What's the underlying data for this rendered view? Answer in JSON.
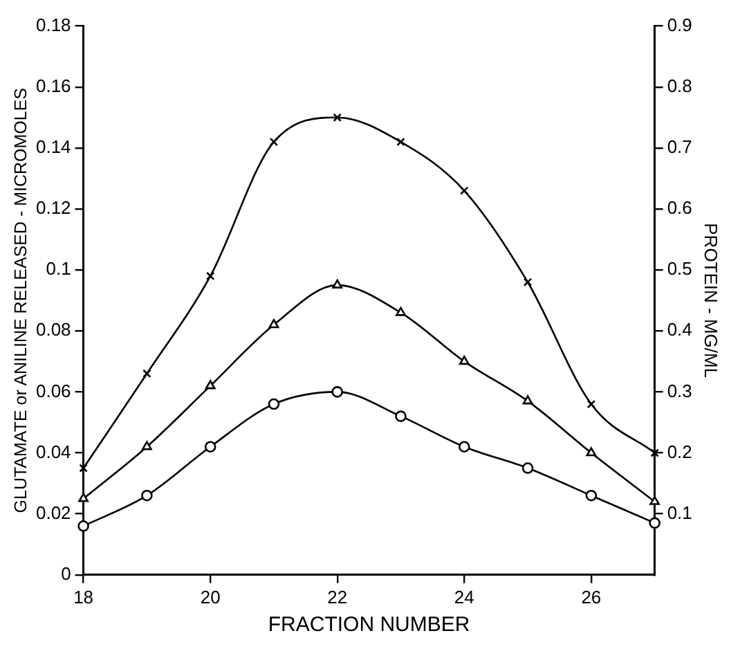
{
  "chart_data": {
    "type": "line",
    "xlabel": "FRACTION NUMBER",
    "ylabel": "GLUTAMATE or ANILINE RELEASED - MICROMOLES",
    "y2label": "PROTEIN - MG/ML",
    "x": [
      18,
      19,
      20,
      21,
      22,
      23,
      24,
      25,
      26,
      27
    ],
    "xlim": [
      18,
      27
    ],
    "xticks": [
      18,
      20,
      22,
      24,
      26
    ],
    "ylim": [
      0,
      0.18
    ],
    "yticks": [
      0,
      0.02,
      0.04,
      0.06,
      0.08,
      0.1,
      0.12,
      0.14,
      0.16,
      0.18
    ],
    "y2lim": [
      0,
      0.9
    ],
    "y2ticks": [
      0.1,
      0.2,
      0.3,
      0.4,
      0.5,
      0.6,
      0.7,
      0.8,
      0.9
    ],
    "legend": false,
    "line_style": "solid",
    "series": [
      {
        "color": "#000000",
        "marker": "cross",
        "values": [
          0.035,
          0.066,
          0.098,
          0.142,
          0.15,
          0.142,
          0.126,
          0.096,
          0.056,
          0.04
        ]
      },
      {
        "color": "#000000",
        "marker": "triangle",
        "values": [
          0.025,
          0.042,
          0.062,
          0.082,
          0.095,
          0.086,
          0.07,
          0.057,
          0.04,
          0.024
        ]
      },
      {
        "color": "#000000",
        "marker": "circle",
        "values": [
          0.016,
          0.026,
          0.042,
          0.056,
          0.06,
          0.052,
          0.042,
          0.035,
          0.026,
          0.017
        ]
      }
    ]
  }
}
